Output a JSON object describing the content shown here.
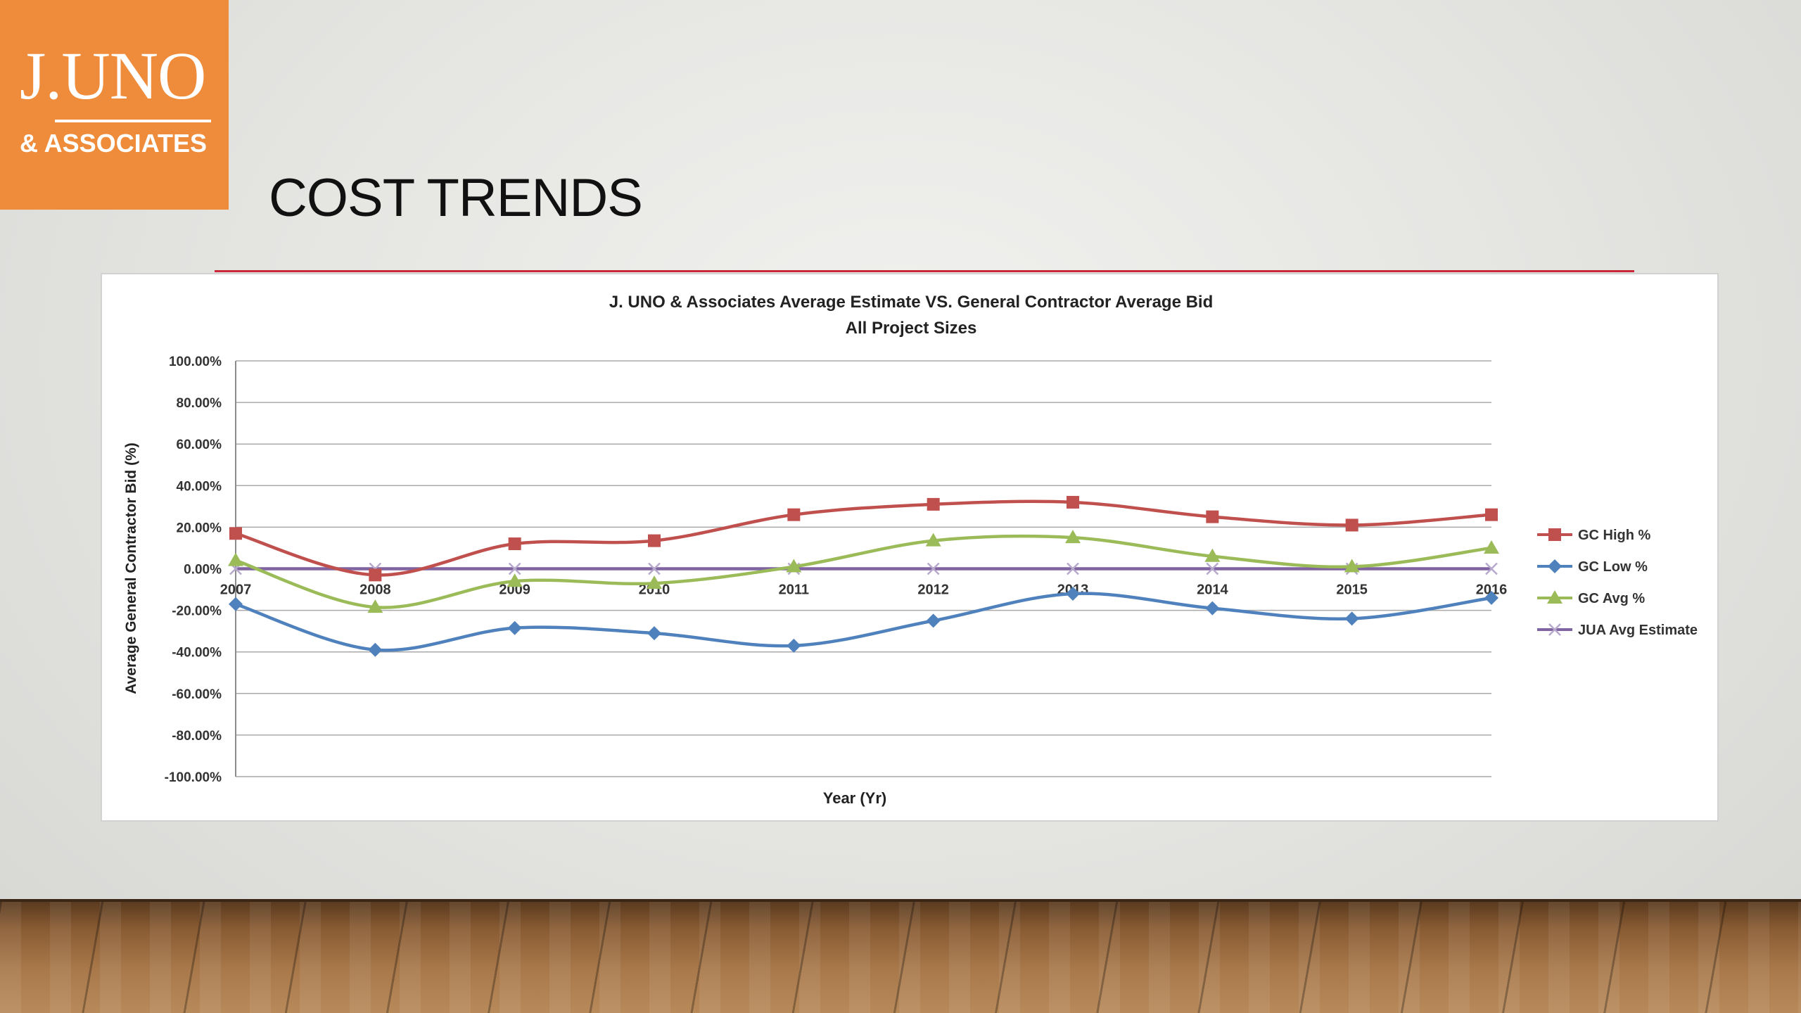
{
  "logo": {
    "line1": "J.UNO",
    "line2": "& ASSOCIATES"
  },
  "slide": {
    "title": "COST TRENDS"
  },
  "chart_data": {
    "type": "line",
    "title": "J. UNO & Associates Average Estimate VS. General Contractor Average Bid",
    "subtitle": "All Project Sizes",
    "xlabel": "Year (Yr)",
    "ylabel": "Average General Contractor Bid (%)",
    "categories": [
      "2007",
      "2008",
      "2009",
      "2010",
      "2011",
      "2012",
      "2013",
      "2014",
      "2015",
      "2016"
    ],
    "ylim": [
      -100,
      100
    ],
    "yticks": [
      100,
      80,
      60,
      40,
      20,
      0,
      -20,
      -40,
      -60,
      -80,
      -100
    ],
    "ytick_labels": [
      "100.00%",
      "80.00%",
      "60.00%",
      "40.00%",
      "20.00%",
      "0.00%",
      "-20.00%",
      "-40.00%",
      "-60.00%",
      "-80.00%",
      "-100.00%"
    ],
    "grid": true,
    "legend": "right",
    "series": [
      {
        "name": "GC High %",
        "color": "#c0504d",
        "marker": "square",
        "values": [
          17,
          -3,
          12,
          13.5,
          26,
          31,
          32,
          25,
          21,
          26
        ]
      },
      {
        "name": "GC Low %",
        "color": "#4f81bd",
        "marker": "diamond",
        "values": [
          -17,
          -39,
          -28.5,
          -31,
          -37,
          -25,
          -12,
          -19,
          -24,
          -14
        ]
      },
      {
        "name": "GC Avg %",
        "color": "#9bbb59",
        "marker": "triangle",
        "values": [
          4,
          -18.5,
          -6,
          -7,
          1,
          13.5,
          15,
          6,
          1,
          10
        ]
      },
      {
        "name": "JUA Avg Estimate",
        "color": "#8064a2",
        "marker": "x",
        "values": [
          0,
          0,
          0,
          0,
          0,
          0,
          0,
          0,
          0,
          0
        ]
      }
    ]
  }
}
